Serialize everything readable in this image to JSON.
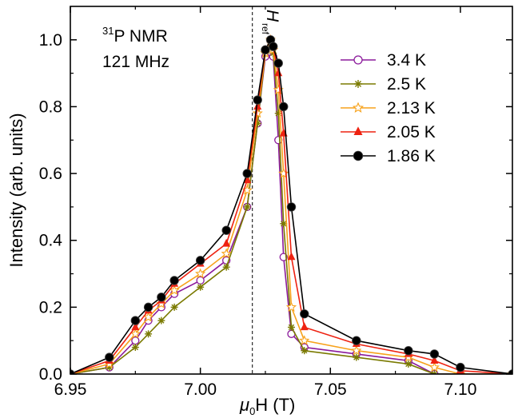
{
  "chart_data": {
    "type": "line",
    "annotations": {
      "line1_sup": "31",
      "line1_rest": "P NMR",
      "line2": "121 MHz",
      "ref_main": "H",
      "ref_sub": "ref",
      "ref_x": 7.02
    },
    "xlabel": {
      "mu": "μ",
      "sub": "0",
      "rest": "H (T)"
    },
    "ylabel": "Intensity (arb. units)",
    "xlim": [
      6.95,
      7.12
    ],
    "ylim": [
      0,
      1.1
    ],
    "xticks": [
      6.95,
      7.0,
      7.05,
      7.1
    ],
    "xtick_labels": [
      "6.95",
      "7.00",
      "7.05",
      "7.10"
    ],
    "yticks": [
      0.0,
      0.2,
      0.4,
      0.6,
      0.8,
      1.0
    ],
    "ytick_labels": [
      "0.0",
      "0.2",
      "0.4",
      "0.6",
      "0.8",
      "1.0"
    ],
    "legend_position": "top-right",
    "series": [
      {
        "name": "3.4 K",
        "color": "#8b1a9b",
        "marker": "open-circle",
        "x": [
          6.95,
          6.965,
          6.975,
          6.98,
          6.985,
          6.99,
          7.0,
          7.01,
          7.018,
          7.022,
          7.025,
          7.027,
          7.028,
          7.03,
          7.032,
          7.035,
          7.04,
          7.06,
          7.08,
          7.09,
          7.1,
          7.12
        ],
        "y": [
          0.0,
          0.02,
          0.1,
          0.16,
          0.2,
          0.24,
          0.28,
          0.34,
          0.5,
          0.75,
          0.95,
          1.0,
          0.95,
          0.7,
          0.35,
          0.12,
          0.08,
          0.06,
          0.04,
          0.0,
          0.0,
          0.0
        ]
      },
      {
        "name": "2.5 K",
        "color": "#7a7a00",
        "marker": "star-asterisk",
        "x": [
          6.95,
          6.965,
          6.975,
          6.98,
          6.985,
          6.99,
          7.0,
          7.01,
          7.018,
          7.022,
          7.025,
          7.027,
          7.028,
          7.03,
          7.032,
          7.035,
          7.04,
          7.06,
          7.08,
          7.09,
          7.1,
          7.12
        ],
        "y": [
          0.0,
          0.02,
          0.08,
          0.12,
          0.16,
          0.2,
          0.26,
          0.32,
          0.5,
          0.75,
          0.96,
          1.0,
          0.96,
          0.78,
          0.45,
          0.14,
          0.07,
          0.05,
          0.03,
          0.0,
          0.0,
          0.0
        ]
      },
      {
        "name": "2.13 K",
        "color": "#f7a21b",
        "marker": "open-star",
        "x": [
          6.95,
          6.965,
          6.975,
          6.98,
          6.985,
          6.99,
          7.0,
          7.01,
          7.018,
          7.022,
          7.025,
          7.027,
          7.028,
          7.03,
          7.032,
          7.035,
          7.04,
          7.06,
          7.08,
          7.09,
          7.1,
          7.12
        ],
        "y": [
          0.0,
          0.03,
          0.12,
          0.17,
          0.21,
          0.25,
          0.3,
          0.36,
          0.55,
          0.78,
          0.96,
          1.0,
          0.97,
          0.85,
          0.6,
          0.2,
          0.1,
          0.07,
          0.05,
          0.02,
          0.0,
          0.0
        ]
      },
      {
        "name": "2.05 K",
        "color": "#ee2211",
        "marker": "filled-triangle",
        "x": [
          6.95,
          6.965,
          6.975,
          6.98,
          6.985,
          6.99,
          7.0,
          7.01,
          7.018,
          7.022,
          7.025,
          7.027,
          7.028,
          7.03,
          7.032,
          7.035,
          7.04,
          7.06,
          7.08,
          7.09,
          7.1,
          7.12
        ],
        "y": [
          0.0,
          0.04,
          0.14,
          0.19,
          0.22,
          0.27,
          0.33,
          0.39,
          0.58,
          0.8,
          0.97,
          1.0,
          0.98,
          0.9,
          0.72,
          0.35,
          0.14,
          0.09,
          0.06,
          0.04,
          0.01,
          0.0
        ]
      },
      {
        "name": "1.86 K",
        "color": "#000000",
        "marker": "filled-circle",
        "x": [
          6.95,
          6.965,
          6.975,
          6.98,
          6.985,
          6.99,
          7.0,
          7.01,
          7.018,
          7.022,
          7.025,
          7.027,
          7.028,
          7.03,
          7.032,
          7.035,
          7.04,
          7.06,
          7.08,
          7.09,
          7.1,
          7.12
        ],
        "y": [
          0.0,
          0.05,
          0.16,
          0.2,
          0.23,
          0.28,
          0.34,
          0.43,
          0.6,
          0.82,
          0.97,
          1.0,
          0.98,
          0.93,
          0.8,
          0.5,
          0.18,
          0.1,
          0.07,
          0.06,
          0.02,
          0.0
        ]
      }
    ]
  }
}
